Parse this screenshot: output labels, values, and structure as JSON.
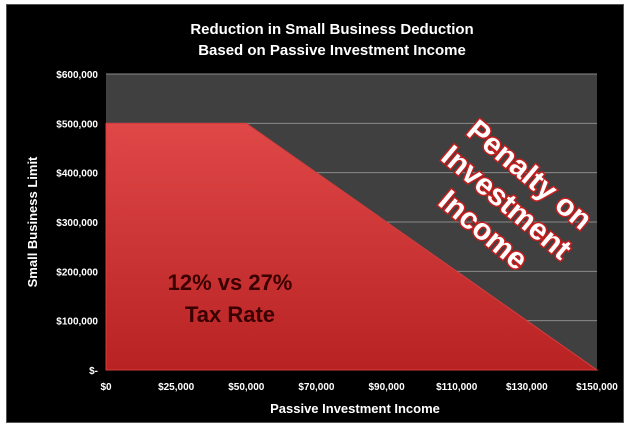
{
  "chart_data": {
    "type": "area",
    "title": [
      "Reduction in Small Business Deduction",
      "Based on Passive Investment Income"
    ],
    "xlabel": "Passive Investment Income",
    "ylabel": "Small Business Limit",
    "x_tick_labels": [
      "$0",
      "$25,000",
      "$50,000",
      "$70,000",
      "$90,000",
      "$110,000",
      "$130,000",
      "$150,000"
    ],
    "y_tick_labels": [
      "$-",
      "$100,000",
      "$200,000",
      "$300,000",
      "$400,000",
      "$500,000",
      "$600,000"
    ],
    "ylim": [
      0,
      600000
    ],
    "grid": true,
    "series": [
      {
        "x": [
          0,
          25000,
          50000,
          70000,
          90000,
          110000,
          130000,
          150000
        ],
        "values": [
          500000,
          500000,
          500000,
          400000,
          300000,
          200000,
          100000,
          0
        ]
      }
    ],
    "annotations": {
      "area_label": [
        "12% vs 27%",
        "Tax Rate"
      ],
      "penalty_label": [
        "Penalty on",
        "Investment",
        "Income"
      ]
    },
    "colors": {
      "background": "#000000",
      "plot_area": "#404040",
      "area_fill": "#d83b3b",
      "gridline": "#8a8a8a",
      "penalty_text_outline": "#c41e1e"
    }
  }
}
